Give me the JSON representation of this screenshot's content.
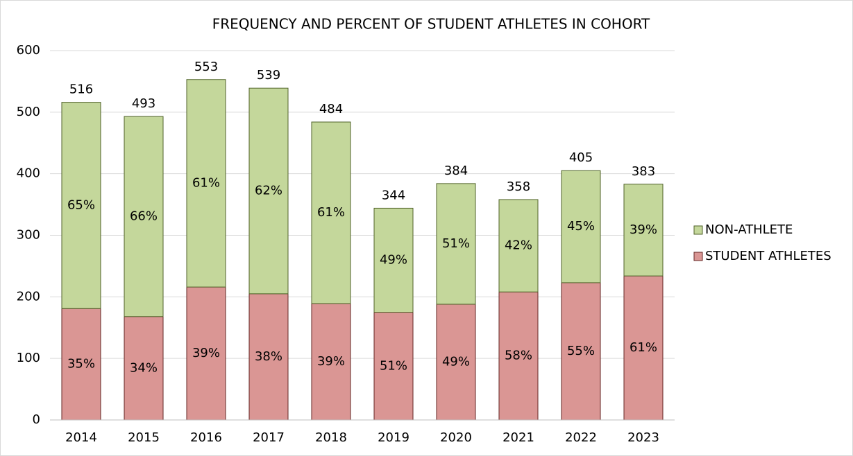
{
  "chart_data": {
    "type": "stacked_bar",
    "title": "FREQUENCY AND PERCENT OF STUDENT ATHLETES IN COHORT",
    "categories": [
      "2014",
      "2015",
      "2016",
      "2017",
      "2018",
      "2019",
      "2020",
      "2021",
      "2022",
      "2023"
    ],
    "series": [
      {
        "name": "STUDENT ATHLETES",
        "color": "#da9694",
        "edge": "#632523",
        "values": [
          181,
          168,
          216,
          205,
          189,
          175,
          188,
          208,
          223,
          234
        ],
        "percent_labels": [
          "35%",
          "34%",
          "39%",
          "38%",
          "39%",
          "51%",
          "49%",
          "58%",
          "55%",
          "61%"
        ]
      },
      {
        "name": "NON-ATHLETE",
        "color": "#c4d79b",
        "edge": "#4f6228",
        "values": [
          335,
          325,
          337,
          334,
          295,
          169,
          196,
          150,
          182,
          149
        ],
        "percent_labels": [
          "65%",
          "66%",
          "61%",
          "62%",
          "61%",
          "49%",
          "51%",
          "42%",
          "45%",
          "39%"
        ]
      }
    ],
    "totals": [
      516,
      493,
      553,
      539,
      484,
      344,
      384,
      358,
      405,
      383
    ],
    "ylim": [
      0,
      600
    ],
    "yticks": [
      0,
      100,
      200,
      300,
      400,
      500,
      600
    ],
    "grid": true
  }
}
